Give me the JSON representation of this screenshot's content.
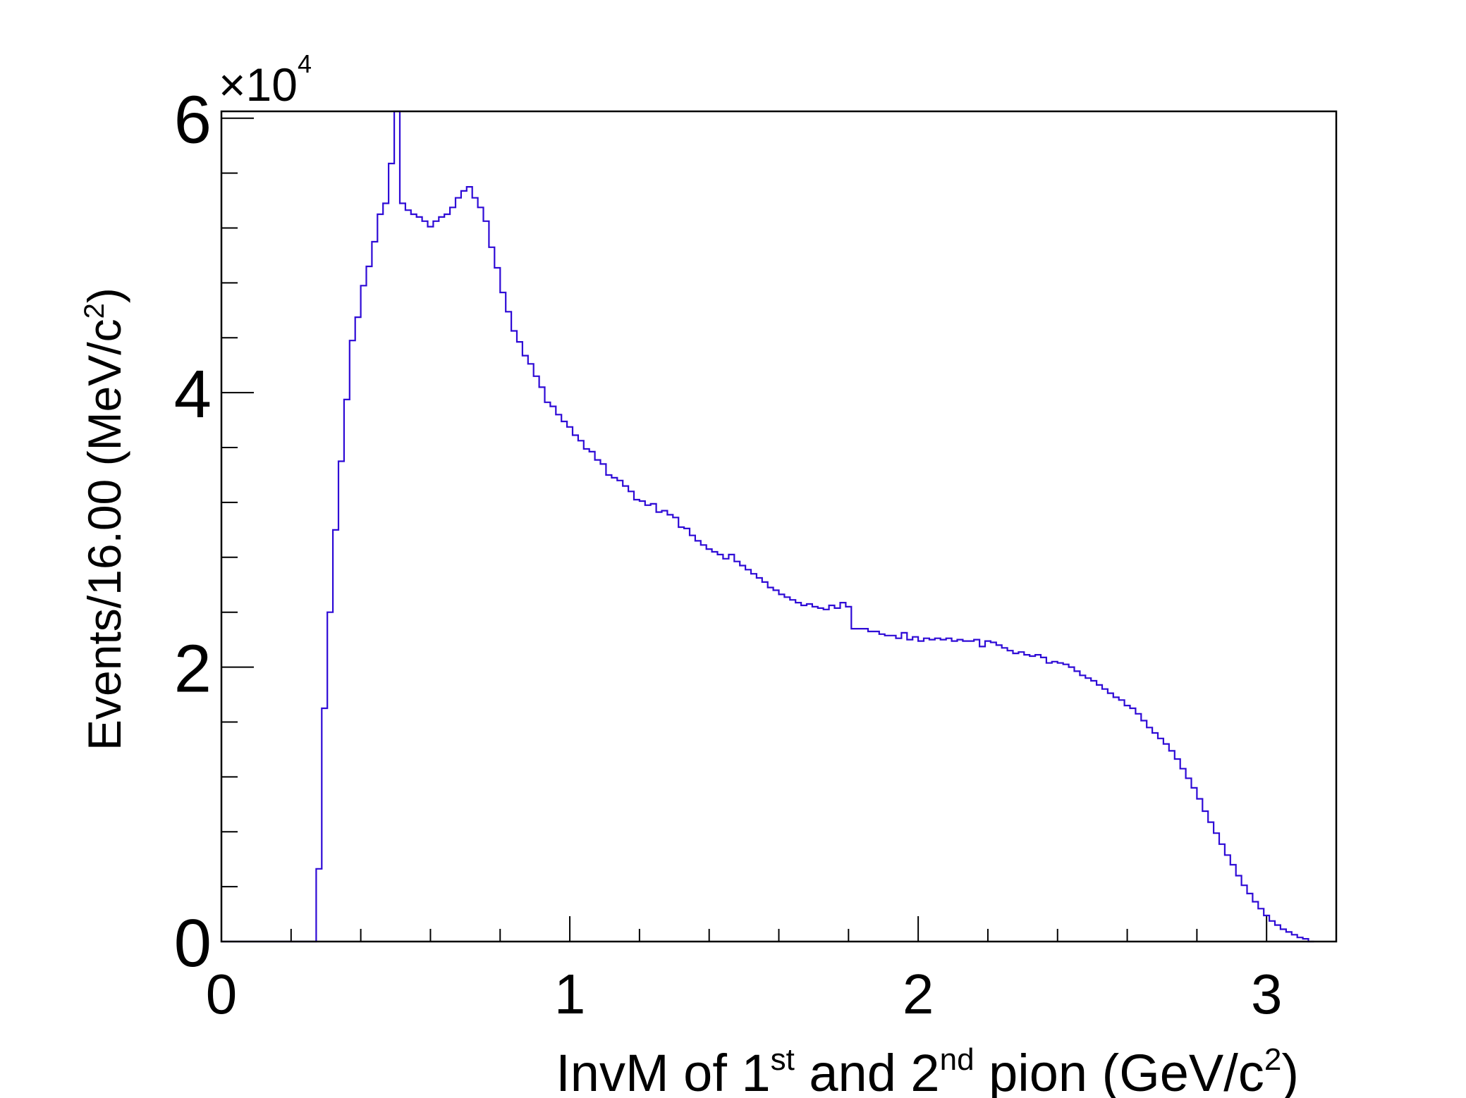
{
  "chart_data": {
    "type": "histogram",
    "x_label": {
      "pre": "InvM of 1",
      "sup1": "st",
      "mid": " and 2",
      "sup2": "nd",
      "post": " pion  (GeV/c",
      "sup3": "2",
      "end": ")"
    },
    "y_label": {
      "pre": "Events/16.00 (MeV/c",
      "sup": "2",
      "end": ")"
    },
    "y_multiplier": {
      "base": "×10",
      "exponent": "4"
    },
    "x_range": [
      0,
      3.2
    ],
    "y_range": [
      0,
      60500
    ],
    "bin_width": 0.016,
    "x_ticks": [
      "0",
      "1",
      "2",
      "3"
    ],
    "x_tick_values": [
      0,
      1,
      2,
      3
    ],
    "y_ticks": [
      "0",
      "2",
      "4",
      "6"
    ],
    "y_tick_values": [
      0,
      20000,
      40000,
      60000
    ],
    "line_color": "#2e0ad6",
    "series": [
      {
        "points": [
          [
            0.0,
            0
          ],
          [
            0.272,
            0
          ],
          [
            0.272,
            5300
          ],
          [
            0.288,
            17000
          ],
          [
            0.304,
            24000
          ],
          [
            0.32,
            30000
          ],
          [
            0.336,
            35000
          ],
          [
            0.352,
            39500
          ],
          [
            0.368,
            43800
          ],
          [
            0.384,
            45500
          ],
          [
            0.4,
            47800
          ],
          [
            0.416,
            49200
          ],
          [
            0.432,
            51000
          ],
          [
            0.448,
            53000
          ],
          [
            0.464,
            53800
          ],
          [
            0.48,
            56700
          ],
          [
            0.496,
            60500
          ],
          [
            0.512,
            53800
          ],
          [
            0.528,
            53300
          ],
          [
            0.544,
            53000
          ],
          [
            0.56,
            52800
          ],
          [
            0.576,
            52500
          ],
          [
            0.592,
            52100
          ],
          [
            0.608,
            52500
          ],
          [
            0.624,
            52800
          ],
          [
            0.64,
            53000
          ],
          [
            0.656,
            53500
          ],
          [
            0.672,
            54200
          ],
          [
            0.688,
            54700
          ],
          [
            0.704,
            55000
          ],
          [
            0.72,
            54200
          ],
          [
            0.736,
            53500
          ],
          [
            0.752,
            52500
          ],
          [
            0.768,
            50600
          ],
          [
            0.784,
            49100
          ],
          [
            0.8,
            47300
          ],
          [
            0.816,
            45900
          ],
          [
            0.832,
            44500
          ],
          [
            0.848,
            43700
          ],
          [
            0.864,
            42700
          ],
          [
            0.88,
            42100
          ],
          [
            0.896,
            41200
          ],
          [
            0.912,
            40400
          ],
          [
            0.928,
            39300
          ],
          [
            0.944,
            39000
          ],
          [
            0.96,
            38400
          ],
          [
            0.976,
            37900
          ],
          [
            0.992,
            37500
          ],
          [
            1.008,
            36900
          ],
          [
            1.024,
            36500
          ],
          [
            1.04,
            35900
          ],
          [
            1.056,
            35700
          ],
          [
            1.072,
            35100
          ],
          [
            1.088,
            34800
          ],
          [
            1.104,
            34000
          ],
          [
            1.12,
            33800
          ],
          [
            1.136,
            33600
          ],
          [
            1.152,
            33200
          ],
          [
            1.168,
            32800
          ],
          [
            1.184,
            32200
          ],
          [
            1.2,
            32100
          ],
          [
            1.216,
            31800
          ],
          [
            1.232,
            31900
          ],
          [
            1.248,
            31300
          ],
          [
            1.264,
            31400
          ],
          [
            1.28,
            31100
          ],
          [
            1.296,
            30900
          ],
          [
            1.312,
            30200
          ],
          [
            1.328,
            30100
          ],
          [
            1.344,
            29600
          ],
          [
            1.36,
            29200
          ],
          [
            1.376,
            28900
          ],
          [
            1.392,
            28600
          ],
          [
            1.408,
            28400
          ],
          [
            1.424,
            28200
          ],
          [
            1.44,
            27900
          ],
          [
            1.456,
            28200
          ],
          [
            1.472,
            27700
          ],
          [
            1.488,
            27400
          ],
          [
            1.504,
            27100
          ],
          [
            1.52,
            26800
          ],
          [
            1.536,
            26500
          ],
          [
            1.552,
            26200
          ],
          [
            1.568,
            25800
          ],
          [
            1.584,
            25600
          ],
          [
            1.6,
            25300
          ],
          [
            1.616,
            25100
          ],
          [
            1.632,
            24900
          ],
          [
            1.648,
            24700
          ],
          [
            1.664,
            24500
          ],
          [
            1.68,
            24600
          ],
          [
            1.696,
            24400
          ],
          [
            1.712,
            24300
          ],
          [
            1.728,
            24200
          ],
          [
            1.744,
            24500
          ],
          [
            1.76,
            24300
          ],
          [
            1.776,
            24700
          ],
          [
            1.792,
            24400
          ],
          [
            1.808,
            22800
          ],
          [
            1.824,
            22800
          ],
          [
            1.84,
            22800
          ],
          [
            1.856,
            22600
          ],
          [
            1.872,
            22600
          ],
          [
            1.888,
            22400
          ],
          [
            1.904,
            22300
          ],
          [
            1.92,
            22300
          ],
          [
            1.936,
            22100
          ],
          [
            1.952,
            22500
          ],
          [
            1.968,
            22000
          ],
          [
            1.984,
            22200
          ],
          [
            2.0,
            21900
          ],
          [
            2.016,
            22100
          ],
          [
            2.032,
            22000
          ],
          [
            2.048,
            22100
          ],
          [
            2.064,
            22000
          ],
          [
            2.08,
            22100
          ],
          [
            2.096,
            21900
          ],
          [
            2.112,
            22000
          ],
          [
            2.128,
            21900
          ],
          [
            2.144,
            21900
          ],
          [
            2.16,
            22000
          ],
          [
            2.176,
            21500
          ],
          [
            2.192,
            21900
          ],
          [
            2.208,
            21800
          ],
          [
            2.224,
            21600
          ],
          [
            2.24,
            21400
          ],
          [
            2.256,
            21200
          ],
          [
            2.272,
            21000
          ],
          [
            2.288,
            21100
          ],
          [
            2.304,
            20900
          ],
          [
            2.32,
            20800
          ],
          [
            2.336,
            20900
          ],
          [
            2.352,
            20700
          ],
          [
            2.368,
            20300
          ],
          [
            2.384,
            20400
          ],
          [
            2.4,
            20300
          ],
          [
            2.416,
            20200
          ],
          [
            2.432,
            20000
          ],
          [
            2.448,
            19700
          ],
          [
            2.464,
            19400
          ],
          [
            2.48,
            19200
          ],
          [
            2.496,
            19000
          ],
          [
            2.512,
            18700
          ],
          [
            2.528,
            18400
          ],
          [
            2.544,
            18100
          ],
          [
            2.56,
            17800
          ],
          [
            2.576,
            17600
          ],
          [
            2.592,
            17200
          ],
          [
            2.608,
            17000
          ],
          [
            2.624,
            16600
          ],
          [
            2.64,
            16100
          ],
          [
            2.656,
            15600
          ],
          [
            2.672,
            15200
          ],
          [
            2.688,
            14800
          ],
          [
            2.704,
            14400
          ],
          [
            2.72,
            13900
          ],
          [
            2.736,
            13300
          ],
          [
            2.752,
            12600
          ],
          [
            2.768,
            11900
          ],
          [
            2.784,
            11200
          ],
          [
            2.8,
            10400
          ],
          [
            2.816,
            9500
          ],
          [
            2.832,
            8700
          ],
          [
            2.848,
            7900
          ],
          [
            2.864,
            7100
          ],
          [
            2.88,
            6300
          ],
          [
            2.896,
            5600
          ],
          [
            2.912,
            4800
          ],
          [
            2.928,
            4100
          ],
          [
            2.944,
            3500
          ],
          [
            2.96,
            2900
          ],
          [
            2.976,
            2400
          ],
          [
            2.992,
            1900
          ],
          [
            3.008,
            1500
          ],
          [
            3.024,
            1200
          ],
          [
            3.04,
            900
          ],
          [
            3.056,
            700
          ],
          [
            3.072,
            500
          ],
          [
            3.088,
            300
          ],
          [
            3.104,
            200
          ],
          [
            3.12,
            0
          ]
        ]
      }
    ]
  }
}
